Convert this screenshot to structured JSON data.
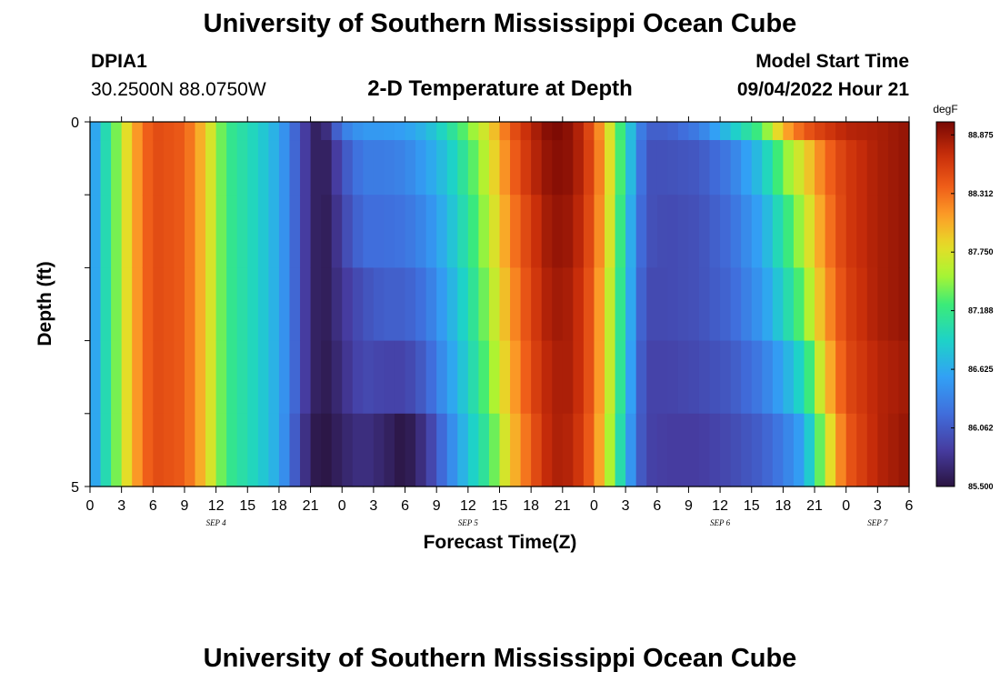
{
  "header": {
    "title": "University of Southern Mississippi Ocean Cube",
    "station_id": "DPIA1",
    "coordinates": "30.2500N  88.0750W",
    "model_start_label": "Model Start Time",
    "model_start_value": "09/04/2022 Hour 21"
  },
  "footer": {
    "title": "University of Southern Mississippi Ocean Cube"
  },
  "chart_data": {
    "type": "heatmap",
    "title": "2-D Temperature at Depth",
    "xlabel": "Forecast Time(Z)",
    "ylabel": "Depth (ft)",
    "x_range_hours": [
      0,
      78
    ],
    "y_range_ft": [
      0,
      5
    ],
    "y_ticks": [
      "0",
      "5"
    ],
    "x_tick_labels": [
      "0",
      "3",
      "6",
      "9",
      "12",
      "15",
      "18",
      "21",
      "0",
      "3",
      "6",
      "9",
      "12",
      "15",
      "18",
      "21",
      "0",
      "3",
      "6",
      "9",
      "12",
      "15",
      "18",
      "21",
      "0",
      "3",
      "6"
    ],
    "day_labels": [
      {
        "label": "SEP 4",
        "hour": 12
      },
      {
        "label": "SEP 5",
        "hour": 36
      },
      {
        "label": "SEP 6",
        "hour": 60
      },
      {
        "label": "SEP 7",
        "hour": 75
      }
    ],
    "depth_levels_ft": [
      0,
      0.5,
      1.5,
      2.5,
      3.5,
      4.5
    ],
    "time_step_hours": 1,
    "colorbar": {
      "units": "degF",
      "min": 85.5,
      "max": 89.0,
      "tick_labels": [
        "88.875",
        "88.312",
        "87.750",
        "87.188",
        "86.625",
        "86.062",
        "85.500"
      ],
      "tick_values": [
        88.875,
        88.312,
        87.75,
        87.188,
        86.625,
        86.062,
        85.5
      ]
    },
    "temperature_keyframes": [
      {
        "hour": 0,
        "values": [
          86.4,
          86.4,
          86.4,
          86.4,
          86.4,
          86.4
        ]
      },
      {
        "hour": 2,
        "values": [
          87.2,
          87.2,
          87.2,
          87.2,
          87.2,
          87.2
        ]
      },
      {
        "hour": 4,
        "values": [
          88.0,
          88.0,
          88.0,
          88.0,
          88.0,
          88.0
        ]
      },
      {
        "hour": 6,
        "values": [
          88.5,
          88.5,
          88.5,
          88.5,
          88.5,
          88.5
        ]
      },
      {
        "hour": 9,
        "values": [
          88.4,
          88.4,
          88.4,
          88.4,
          88.4,
          88.4
        ]
      },
      {
        "hour": 11,
        "values": [
          87.9,
          87.9,
          87.9,
          87.9,
          87.9,
          87.9
        ]
      },
      {
        "hour": 13,
        "values": [
          87.2,
          87.2,
          87.2,
          87.2,
          87.2,
          87.2
        ]
      },
      {
        "hour": 16,
        "values": [
          86.9,
          86.9,
          86.9,
          86.9,
          86.9,
          86.9
        ]
      },
      {
        "hour": 18,
        "values": [
          86.6,
          86.6,
          86.6,
          86.6,
          86.6,
          86.6
        ]
      },
      {
        "hour": 20,
        "values": [
          86.0,
          86.0,
          86.0,
          86.0,
          86.0,
          85.9
        ]
      },
      {
        "hour": 21,
        "values": [
          85.7,
          85.7,
          85.7,
          85.7,
          85.7,
          85.6
        ]
      },
      {
        "hour": 22,
        "values": [
          85.55,
          85.55,
          85.55,
          85.55,
          85.55,
          85.5
        ]
      },
      {
        "hour": 23,
        "values": [
          85.9,
          85.7,
          85.65,
          85.65,
          85.6,
          85.55
        ]
      },
      {
        "hour": 24,
        "values": [
          86.3,
          86.0,
          85.9,
          85.8,
          85.75,
          85.65
        ]
      },
      {
        "hour": 26,
        "values": [
          86.5,
          86.3,
          86.2,
          86.0,
          85.95,
          85.75
        ]
      },
      {
        "hour": 28,
        "values": [
          86.5,
          86.3,
          86.2,
          86.1,
          85.9,
          85.65
        ]
      },
      {
        "hour": 30,
        "values": [
          86.55,
          86.35,
          86.25,
          86.1,
          85.9,
          85.5
        ]
      },
      {
        "hour": 32,
        "values": [
          86.7,
          86.55,
          86.4,
          86.25,
          86.1,
          85.8
        ]
      },
      {
        "hour": 34,
        "values": [
          87.0,
          86.8,
          86.7,
          86.6,
          86.5,
          86.3
        ]
      },
      {
        "hour": 36,
        "values": [
          87.4,
          87.2,
          87.1,
          87.0,
          86.9,
          86.8
        ]
      },
      {
        "hour": 38,
        "values": [
          87.8,
          87.7,
          87.6,
          87.5,
          87.4,
          87.2
        ]
      },
      {
        "hour": 40,
        "values": [
          88.4,
          88.3,
          88.2,
          88.1,
          88.0,
          87.9
        ]
      },
      {
        "hour": 42,
        "values": [
          88.75,
          88.7,
          88.6,
          88.55,
          88.5,
          88.4
        ]
      },
      {
        "hour": 44,
        "values": [
          89.0,
          88.95,
          88.9,
          88.85,
          88.8,
          88.8
        ]
      },
      {
        "hour": 46,
        "values": [
          88.9,
          88.9,
          88.85,
          88.8,
          88.8,
          88.75
        ]
      },
      {
        "hour": 48,
        "values": [
          88.4,
          88.45,
          88.4,
          88.35,
          88.35,
          88.3
        ]
      },
      {
        "hour": 50,
        "values": [
          87.5,
          87.55,
          87.5,
          87.4,
          87.4,
          87.3
        ]
      },
      {
        "hour": 51,
        "values": [
          87.0,
          87.0,
          86.9,
          86.9,
          86.85,
          86.75
        ]
      },
      {
        "hour": 52,
        "values": [
          86.5,
          86.45,
          86.35,
          86.3,
          86.25,
          86.2
        ]
      },
      {
        "hour": 53,
        "values": [
          86.1,
          86.0,
          86.0,
          85.95,
          85.9,
          85.9
        ]
      },
      {
        "hour": 55,
        "values": [
          86.1,
          86.0,
          85.95,
          85.95,
          85.9,
          85.85
        ]
      },
      {
        "hour": 58,
        "values": [
          86.3,
          86.05,
          86.0,
          86.0,
          85.95,
          85.85
        ]
      },
      {
        "hour": 61,
        "values": [
          86.8,
          86.3,
          86.2,
          86.15,
          86.05,
          85.95
        ]
      },
      {
        "hour": 64,
        "values": [
          87.3,
          86.8,
          86.6,
          86.5,
          86.3,
          86.1
        ]
      },
      {
        "hour": 66,
        "values": [
          88.0,
          87.4,
          87.1,
          86.9,
          86.6,
          86.3
        ]
      },
      {
        "hour": 68,
        "values": [
          88.4,
          87.8,
          87.6,
          87.4,
          87.0,
          86.6
        ]
      },
      {
        "hour": 70,
        "values": [
          88.6,
          88.3,
          88.2,
          88.1,
          87.9,
          87.6
        ]
      },
      {
        "hour": 72,
        "values": [
          88.75,
          88.6,
          88.6,
          88.55,
          88.5,
          88.4
        ]
      },
      {
        "hour": 75,
        "values": [
          88.8,
          88.8,
          88.8,
          88.8,
          88.75,
          88.75
        ]
      },
      {
        "hour": 78,
        "values": [
          88.9,
          88.9,
          88.9,
          88.9,
          88.85,
          88.9
        ]
      }
    ]
  }
}
